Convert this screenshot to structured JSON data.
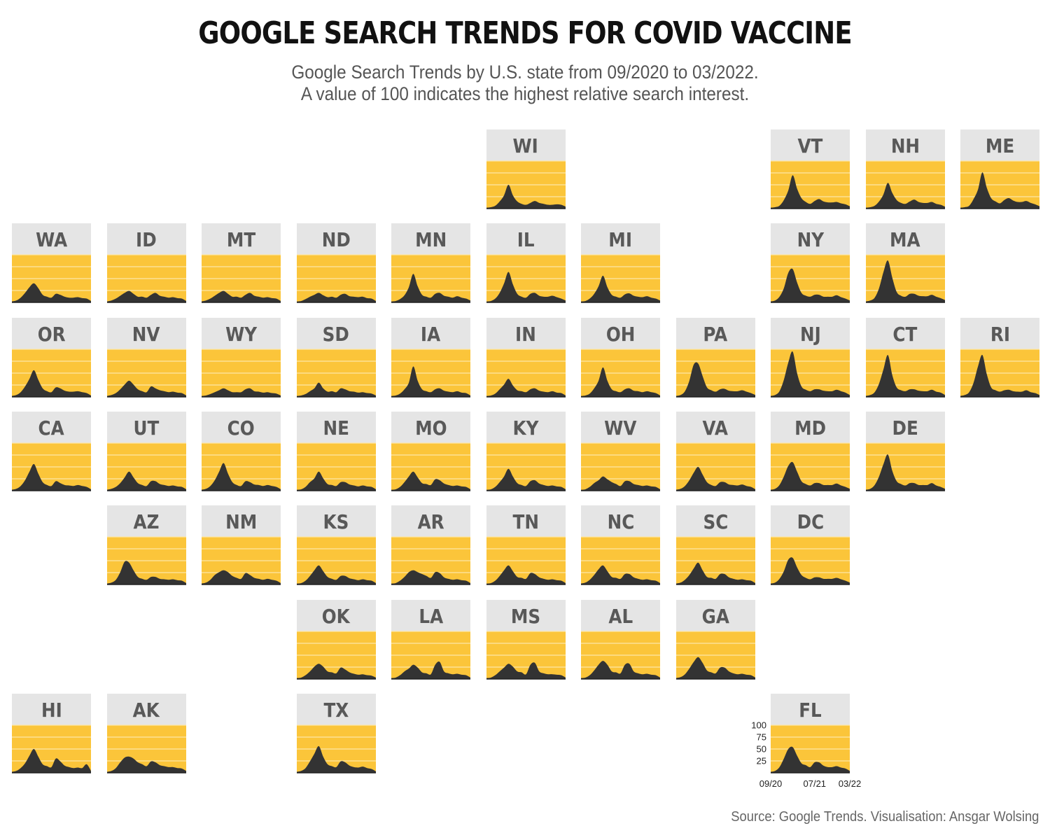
{
  "title": "GOOGLE SEARCH TRENDS FOR COVID VACCINE",
  "subtitle_lines": [
    "Google Search Trends by U.S. state from 09/2020 to 03/2022.",
    "A value of 100 indicates the highest relative search interest."
  ],
  "caption": "Source: Google Trends. Visualisation: Ansgar Wolsing",
  "colors": {
    "panel_bg": "#fbc53a",
    "grid_lines": "#fde7a6",
    "area_fill": "#333333",
    "strip_bg": "#e5e5e5",
    "strip_text": "#595959"
  },
  "chart_data": {
    "type": "area",
    "facet": "us-state-grid",
    "x": [
      "09/20",
      "10/20",
      "11/20",
      "12/20",
      "01/21",
      "02/21",
      "03/21",
      "04/21",
      "05/21",
      "06/21",
      "07/21",
      "08/21",
      "09/21",
      "10/21",
      "11/21",
      "12/21",
      "01/22",
      "02/22",
      "03/22"
    ],
    "x_ticks": [
      "09/20",
      "07/21",
      "03/22"
    ],
    "y_ticks": [
      25,
      50,
      75,
      100
    ],
    "ylim": [
      0,
      100
    ],
    "grid": true,
    "series": [
      {
        "name": "WI",
        "values": [
          2,
          3,
          6,
          15,
          28,
          50,
          28,
          15,
          10,
          8,
          12,
          16,
          12,
          10,
          8,
          8,
          9,
          8,
          4
        ]
      },
      {
        "name": "VT",
        "values": [
          2,
          3,
          6,
          18,
          38,
          70,
          42,
          22,
          14,
          10,
          16,
          20,
          15,
          13,
          13,
          14,
          11,
          9,
          5
        ]
      },
      {
        "name": "NH",
        "values": [
          2,
          3,
          6,
          15,
          30,
          54,
          33,
          18,
          12,
          10,
          15,
          19,
          14,
          12,
          12,
          14,
          10,
          8,
          4
        ]
      },
      {
        "name": "ME",
        "values": [
          2,
          3,
          6,
          20,
          40,
          76,
          44,
          22,
          15,
          11,
          18,
          22,
          17,
          14,
          14,
          16,
          12,
          9,
          5
        ]
      },
      {
        "name": "WA",
        "values": [
          2,
          4,
          10,
          20,
          32,
          40,
          30,
          16,
          12,
          10,
          18,
          16,
          12,
          10,
          10,
          11,
          9,
          8,
          3
        ]
      },
      {
        "name": "ID",
        "values": [
          2,
          4,
          8,
          14,
          20,
          24,
          18,
          12,
          12,
          10,
          16,
          20,
          14,
          12,
          10,
          11,
          9,
          8,
          3
        ]
      },
      {
        "name": "MT",
        "values": [
          2,
          4,
          8,
          14,
          20,
          24,
          18,
          12,
          12,
          10,
          16,
          20,
          14,
          12,
          10,
          11,
          9,
          8,
          3
        ]
      },
      {
        "name": "ND",
        "values": [
          2,
          3,
          7,
          12,
          16,
          20,
          15,
          11,
          12,
          10,
          16,
          18,
          13,
          12,
          11,
          12,
          9,
          8,
          3
        ]
      },
      {
        "name": "MN",
        "values": [
          2,
          3,
          7,
          15,
          32,
          60,
          34,
          16,
          12,
          10,
          18,
          20,
          14,
          12,
          10,
          13,
          10,
          8,
          4
        ]
      },
      {
        "name": "IL",
        "values": [
          2,
          3,
          8,
          20,
          40,
          64,
          38,
          18,
          12,
          10,
          18,
          20,
          14,
          12,
          12,
          14,
          11,
          8,
          4
        ]
      },
      {
        "name": "MI",
        "values": [
          2,
          3,
          8,
          18,
          34,
          56,
          32,
          16,
          12,
          10,
          17,
          19,
          14,
          12,
          11,
          13,
          10,
          8,
          4
        ]
      },
      {
        "name": "NY",
        "values": [
          2,
          4,
          12,
          30,
          62,
          70,
          42,
          20,
          14,
          12,
          16,
          16,
          12,
          12,
          12,
          15,
          11,
          8,
          4
        ]
      },
      {
        "name": "MA",
        "values": [
          2,
          4,
          10,
          30,
          64,
          88,
          52,
          22,
          14,
          12,
          18,
          18,
          14,
          13,
          13,
          16,
          12,
          9,
          5
        ]
      },
      {
        "name": "OR",
        "values": [
          2,
          4,
          10,
          22,
          38,
          56,
          36,
          18,
          12,
          10,
          20,
          18,
          13,
          11,
          11,
          12,
          10,
          8,
          3
        ]
      },
      {
        "name": "NV",
        "values": [
          2,
          4,
          8,
          16,
          26,
          34,
          26,
          16,
          12,
          10,
          22,
          18,
          14,
          12,
          10,
          11,
          9,
          8,
          3
        ]
      },
      {
        "name": "WY",
        "values": [
          2,
          3,
          6,
          10,
          14,
          18,
          14,
          10,
          10,
          10,
          16,
          18,
          12,
          11,
          9,
          10,
          8,
          7,
          3
        ]
      },
      {
        "name": "SD",
        "values": [
          2,
          3,
          6,
          12,
          18,
          30,
          18,
          11,
          12,
          10,
          18,
          16,
          12,
          11,
          9,
          10,
          8,
          7,
          3
        ]
      },
      {
        "name": "IA",
        "values": [
          2,
          3,
          7,
          16,
          30,
          64,
          34,
          16,
          12,
          10,
          16,
          18,
          13,
          11,
          10,
          12,
          9,
          8,
          3
        ]
      },
      {
        "name": "IN",
        "values": [
          2,
          3,
          7,
          16,
          26,
          38,
          24,
          14,
          12,
          10,
          16,
          18,
          13,
          11,
          10,
          12,
          9,
          8,
          3
        ]
      },
      {
        "name": "OH",
        "values": [
          2,
          3,
          7,
          18,
          34,
          62,
          34,
          16,
          12,
          10,
          16,
          18,
          13,
          12,
          10,
          12,
          10,
          8,
          3
        ]
      },
      {
        "name": "PA",
        "values": [
          2,
          4,
          12,
          34,
          68,
          70,
          44,
          20,
          14,
          11,
          16,
          17,
          13,
          12,
          12,
          14,
          11,
          8,
          4
        ]
      },
      {
        "name": "NJ",
        "values": [
          2,
          4,
          12,
          36,
          72,
          95,
          50,
          22,
          15,
          12,
          16,
          16,
          13,
          12,
          12,
          15,
          12,
          9,
          4
        ]
      },
      {
        "name": "CT",
        "values": [
          2,
          4,
          10,
          28,
          58,
          88,
          46,
          20,
          14,
          12,
          16,
          16,
          13,
          12,
          12,
          15,
          11,
          9,
          4
        ]
      },
      {
        "name": "RI",
        "values": [
          2,
          4,
          10,
          30,
          64,
          88,
          48,
          20,
          14,
          11,
          14,
          15,
          12,
          11,
          11,
          14,
          10,
          8,
          4
        ]
      },
      {
        "name": "CA",
        "values": [
          2,
          4,
          10,
          22,
          40,
          56,
          36,
          18,
          12,
          10,
          20,
          16,
          12,
          11,
          10,
          12,
          10,
          8,
          3
        ]
      },
      {
        "name": "UT",
        "values": [
          2,
          4,
          8,
          16,
          28,
          40,
          28,
          16,
          12,
          10,
          20,
          20,
          14,
          12,
          10,
          11,
          9,
          8,
          3
        ]
      },
      {
        "name": "CO",
        "values": [
          2,
          4,
          10,
          22,
          40,
          58,
          36,
          18,
          12,
          10,
          20,
          18,
          13,
          12,
          10,
          12,
          10,
          8,
          3
        ]
      },
      {
        "name": "NE",
        "values": [
          2,
          3,
          8,
          18,
          26,
          40,
          26,
          14,
          12,
          10,
          18,
          18,
          13,
          11,
          9,
          11,
          9,
          8,
          3
        ]
      },
      {
        "name": "MO",
        "values": [
          2,
          3,
          8,
          18,
          30,
          40,
          28,
          16,
          14,
          12,
          24,
          22,
          15,
          12,
          10,
          11,
          9,
          8,
          3
        ]
      },
      {
        "name": "KY",
        "values": [
          2,
          3,
          8,
          18,
          30,
          46,
          30,
          16,
          12,
          10,
          20,
          22,
          15,
          12,
          10,
          11,
          9,
          8,
          3
        ]
      },
      {
        "name": "WV",
        "values": [
          2,
          3,
          8,
          16,
          22,
          30,
          24,
          18,
          14,
          10,
          20,
          20,
          14,
          12,
          10,
          11,
          9,
          8,
          3
        ]
      },
      {
        "name": "VA",
        "values": [
          2,
          4,
          10,
          22,
          38,
          50,
          34,
          18,
          12,
          10,
          18,
          18,
          13,
          12,
          11,
          13,
          10,
          8,
          3
        ]
      },
      {
        "name": "MD",
        "values": [
          2,
          4,
          12,
          30,
          52,
          60,
          40,
          20,
          14,
          11,
          16,
          16,
          12,
          12,
          12,
          15,
          11,
          8,
          4
        ]
      },
      {
        "name": "DE",
        "values": [
          2,
          4,
          12,
          30,
          56,
          76,
          42,
          20,
          14,
          11,
          16,
          16,
          12,
          12,
          12,
          16,
          11,
          8,
          4
        ]
      },
      {
        "name": "AZ",
        "values": [
          2,
          4,
          10,
          26,
          48,
          46,
          30,
          16,
          12,
          10,
          16,
          16,
          12,
          11,
          10,
          11,
          9,
          8,
          3
        ]
      },
      {
        "name": "NM",
        "values": [
          2,
          4,
          10,
          20,
          26,
          30,
          26,
          18,
          14,
          12,
          24,
          20,
          14,
          12,
          10,
          12,
          10,
          8,
          3
        ]
      },
      {
        "name": "KS",
        "values": [
          2,
          3,
          8,
          18,
          30,
          40,
          28,
          16,
          12,
          10,
          18,
          18,
          13,
          11,
          9,
          11,
          9,
          8,
          3
        ]
      },
      {
        "name": "AR",
        "values": [
          2,
          3,
          8,
          16,
          26,
          30,
          26,
          22,
          18,
          14,
          26,
          24,
          15,
          12,
          10,
          11,
          9,
          8,
          3
        ]
      },
      {
        "name": "TN",
        "values": [
          2,
          3,
          8,
          18,
          30,
          40,
          28,
          16,
          14,
          12,
          24,
          22,
          15,
          12,
          10,
          11,
          9,
          8,
          3
        ]
      },
      {
        "name": "NC",
        "values": [
          2,
          4,
          10,
          20,
          32,
          40,
          28,
          16,
          14,
          12,
          22,
          22,
          15,
          12,
          10,
          11,
          9,
          8,
          3
        ]
      },
      {
        "name": "SC",
        "values": [
          2,
          4,
          10,
          20,
          34,
          46,
          30,
          16,
          14,
          12,
          22,
          22,
          15,
          12,
          10,
          11,
          9,
          8,
          3
        ]
      },
      {
        "name": "DC",
        "values": [
          2,
          4,
          12,
          28,
          52,
          56,
          36,
          20,
          14,
          11,
          15,
          15,
          12,
          12,
          12,
          14,
          11,
          8,
          4
        ]
      },
      {
        "name": "OK",
        "values": [
          2,
          3,
          8,
          16,
          26,
          32,
          26,
          16,
          14,
          12,
          24,
          20,
          14,
          11,
          9,
          10,
          8,
          7,
          3
        ]
      },
      {
        "name": "LA",
        "values": [
          2,
          3,
          8,
          16,
          22,
          30,
          24,
          14,
          12,
          10,
          30,
          36,
          16,
          12,
          10,
          11,
          9,
          8,
          3
        ]
      },
      {
        "name": "MS",
        "values": [
          2,
          3,
          8,
          16,
          24,
          32,
          26,
          16,
          14,
          10,
          30,
          34,
          16,
          12,
          10,
          10,
          9,
          8,
          3
        ]
      },
      {
        "name": "AL",
        "values": [
          2,
          3,
          8,
          18,
          30,
          38,
          30,
          16,
          14,
          12,
          30,
          32,
          16,
          12,
          10,
          11,
          9,
          8,
          3
        ]
      },
      {
        "name": "GA",
        "values": [
          2,
          4,
          10,
          22,
          36,
          46,
          34,
          18,
          14,
          12,
          24,
          24,
          16,
          12,
          10,
          11,
          9,
          8,
          3
        ]
      },
      {
        "name": "HI",
        "values": [
          2,
          4,
          10,
          20,
          36,
          50,
          34,
          18,
          14,
          12,
          30,
          24,
          15,
          12,
          10,
          11,
          10,
          18,
          4
        ]
      },
      {
        "name": "AK",
        "values": [
          2,
          4,
          10,
          22,
          32,
          34,
          30,
          22,
          18,
          14,
          24,
          22,
          16,
          14,
          12,
          12,
          10,
          9,
          4
        ]
      },
      {
        "name": "TX",
        "values": [
          2,
          4,
          10,
          24,
          40,
          56,
          34,
          18,
          14,
          12,
          24,
          22,
          15,
          12,
          11,
          13,
          10,
          8,
          3
        ]
      },
      {
        "name": "FL",
        "values": [
          2,
          4,
          12,
          30,
          50,
          54,
          36,
          20,
          16,
          12,
          22,
          22,
          15,
          12,
          12,
          14,
          11,
          9,
          4
        ]
      }
    ]
  }
}
